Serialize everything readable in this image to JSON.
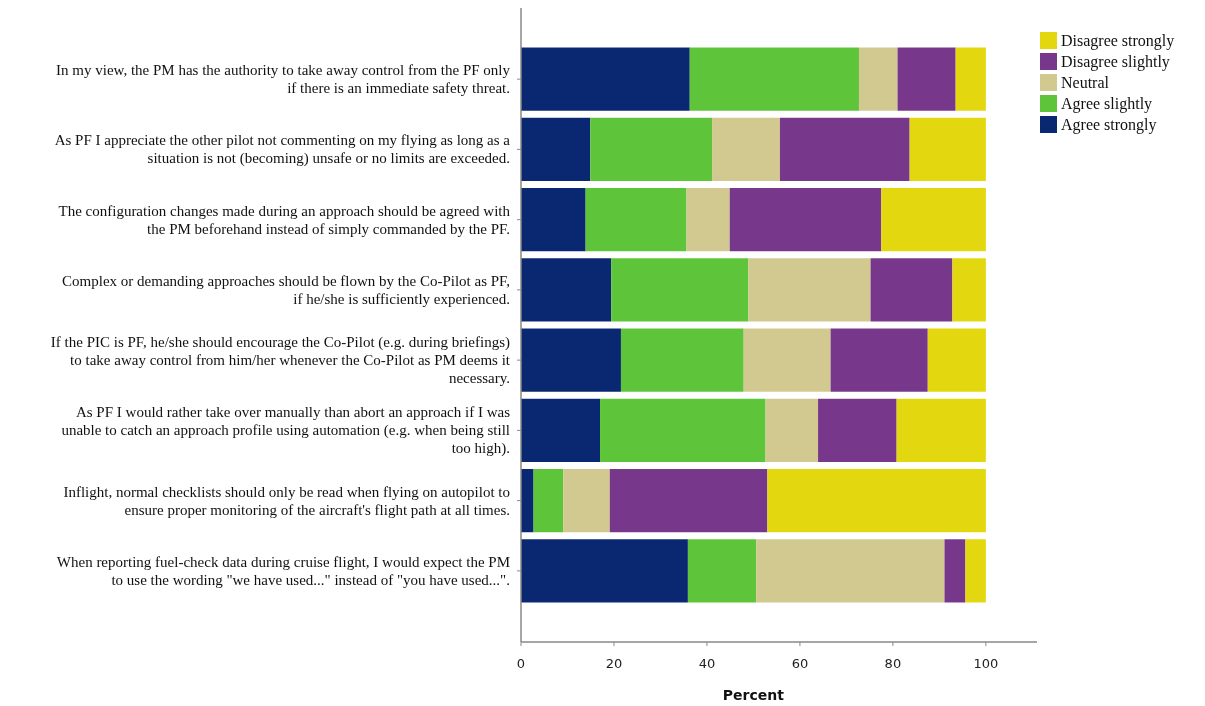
{
  "chart_data": {
    "type": "bar",
    "orientation": "horizontal",
    "stacked": true,
    "xlabel": "Percent",
    "categories": [
      "In my view, the PM has the authority to take away control from the PF only if there is an immediate safety threat.",
      "As PF I appreciate the other pilot not commenting on my flying as long as a situation is not (becoming) unsafe or no limits are exceeded.",
      "The configuration changes made during an approach should be agreed with the PM beforehand instead of simply commanded by the PF.",
      "Complex or demanding approaches should be flown by the Co-Pilot as PF, if he/she is sufficiently experienced.",
      "If the PIC is PF, he/she should encourage the Co-Pilot (e.g. during briefings) to take away control from him/her whenever the Co-Pilot as PM deems it necessary.",
      "As PF I would rather take over manually than abort an approach if I was unable to catch an approach profile using automation (e.g. when being still too high).",
      "Inflight, normal checklists should only be read when flying on autopilot to ensure proper monitoring of the aircraft's flight path at all times.",
      "When reporting fuel-check data during cruise flight, I would expect the PM to use the wording \"we have used...\" instead of \"you have used...\"."
    ],
    "series": [
      {
        "name": "Agree strongly",
        "color": "#0a2771",
        "values": [
          36.3,
          14.9,
          13.9,
          19.4,
          21.5,
          17.0,
          2.7,
          35.9
        ]
      },
      {
        "name": "Agree slightly",
        "color": "#5ec43a",
        "values": [
          36.4,
          26.2,
          21.7,
          29.5,
          26.4,
          35.6,
          6.4,
          14.7
        ]
      },
      {
        "name": "Neutral",
        "color": "#d1c98f",
        "values": [
          8.3,
          14.6,
          9.3,
          26.3,
          18.7,
          11.3,
          10.0,
          40.5
        ]
      },
      {
        "name": "Disagree slightly",
        "color": "#77388c",
        "values": [
          12.5,
          27.9,
          32.6,
          17.6,
          20.9,
          16.9,
          33.9,
          4.5
        ]
      },
      {
        "name": "Disagree strongly",
        "color": "#e3d80f",
        "values": [
          6.5,
          16.4,
          22.5,
          7.2,
          12.5,
          19.2,
          47.0,
          4.4
        ]
      }
    ],
    "xlim": [
      0,
      111
    ],
    "xticks": [
      0,
      20,
      40,
      60,
      80,
      100
    ],
    "grid": false,
    "legend": "top right"
  }
}
